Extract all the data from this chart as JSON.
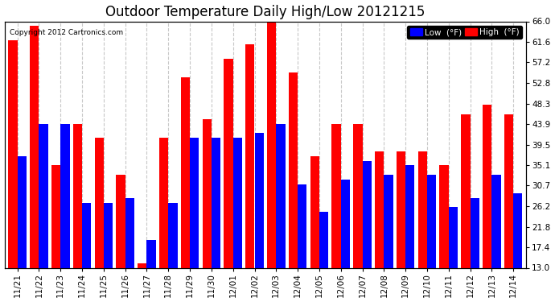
{
  "title": "Outdoor Temperature Daily High/Low 20121215",
  "copyright": "Copyright 2012 Cartronics.com",
  "legend_low": "Low  (°F)",
  "legend_high": "High  (°F)",
  "dates": [
    "11/21",
    "11/22",
    "11/23",
    "11/24",
    "11/25",
    "11/26",
    "11/27",
    "11/28",
    "11/29",
    "11/30",
    "12/01",
    "12/02",
    "12/03",
    "12/04",
    "12/05",
    "12/06",
    "12/07",
    "12/08",
    "12/09",
    "12/10",
    "12/11",
    "12/12",
    "12/13",
    "12/14"
  ],
  "high": [
    62.0,
    65.0,
    35.0,
    44.0,
    41.0,
    33.0,
    14.0,
    41.0,
    54.0,
    45.0,
    58.0,
    61.0,
    66.0,
    55.0,
    37.0,
    44.0,
    44.0,
    38.0,
    38.0,
    38.0,
    35.0,
    46.0,
    48.0,
    46.0
  ],
  "low": [
    37.0,
    44.0,
    44.0,
    27.0,
    27.0,
    28.0,
    19.0,
    27.0,
    41.0,
    41.0,
    41.0,
    42.0,
    44.0,
    31.0,
    25.0,
    32.0,
    36.0,
    33.0,
    35.0,
    33.0,
    26.0,
    28.0,
    33.0,
    29.0
  ],
  "ymin": 13.0,
  "ymax": 66.0,
  "yticks": [
    13.0,
    17.4,
    21.8,
    26.2,
    30.7,
    35.1,
    39.5,
    43.9,
    48.3,
    52.8,
    57.2,
    61.6,
    66.0
  ],
  "high_color": "#ff0000",
  "low_color": "#0000ff",
  "bg_color": "#ffffff",
  "grid_color": "#c8c8c8",
  "title_fontsize": 12,
  "tick_fontsize": 7.5,
  "bar_width": 0.42
}
